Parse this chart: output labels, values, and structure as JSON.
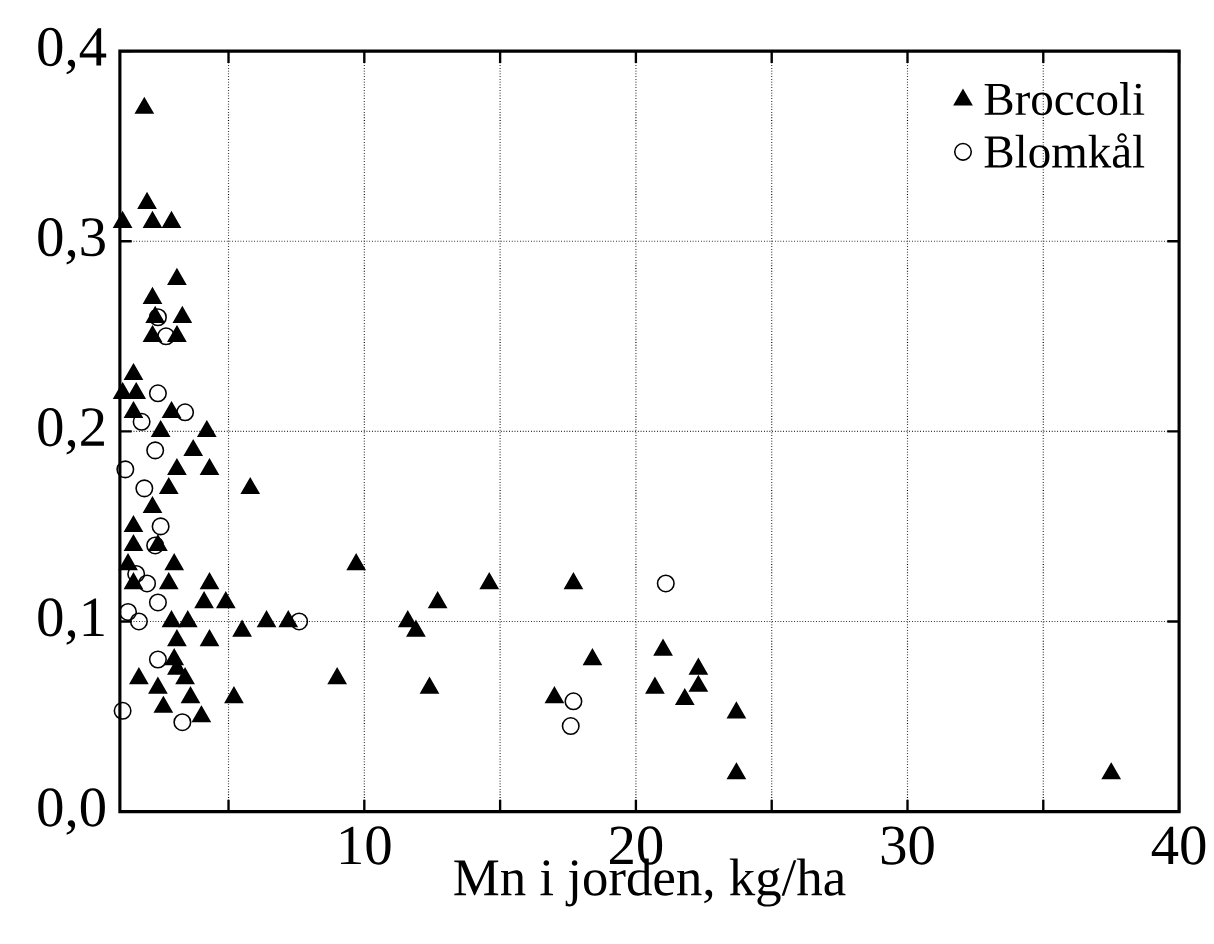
{
  "chart_data": {
    "type": "scatter",
    "xlabel": "Mn i jorden, kg/ha",
    "xlim": [
      1,
      40
    ],
    "ylim": [
      0,
      0.4
    ],
    "xticks": [
      {
        "value": 5,
        "label": null
      },
      10,
      {
        "value": 15,
        "label": null
      },
      20,
      {
        "value": 25,
        "label": null
      },
      30,
      {
        "value": 35,
        "label": null
      },
      40
    ],
    "yticks": [
      {
        "value": 0,
        "label": "0,0"
      },
      {
        "value": 0.1,
        "label": "0,1"
      },
      {
        "value": 0.2,
        "label": "0,2"
      },
      {
        "value": 0.3,
        "label": "0,3"
      },
      {
        "value": 0.4,
        "label": "0,4"
      }
    ],
    "grid": true,
    "legend": "top right",
    "series": [
      {
        "name": "Broccoli",
        "color": "#000000",
        "marker": "triangle",
        "x": [
          1.9,
          2.0,
          1.1,
          2.2,
          2.9,
          3.1,
          2.2,
          2.3,
          3.3,
          2.2,
          3.1,
          1.5,
          1.1,
          1.6,
          1.5,
          2.9,
          2.5,
          4.2,
          3.7,
          3.1,
          4.3,
          2.8,
          5.8,
          2.2,
          1.5,
          2.4,
          1.5,
          3.0,
          1.3,
          9.7,
          1.5,
          2.8,
          4.3,
          14.6,
          17.7,
          4.1,
          4.9,
          12.7,
          3.5,
          6.4,
          7.2,
          11.6,
          11.9,
          2.9,
          5.5,
          4.3,
          3.1,
          9.0,
          12.4,
          1.7,
          2.4,
          3.1,
          3.4,
          3.6,
          2.6,
          4.0,
          5.2,
          3.0,
          17.0,
          18.4,
          21.0,
          20.7,
          22.3,
          22.3,
          21.8,
          23.7,
          23.7,
          37.5
        ],
        "values": [
          0.37,
          0.32,
          0.31,
          0.31,
          0.31,
          0.28,
          0.27,
          0.26,
          0.26,
          0.25,
          0.25,
          0.23,
          0.22,
          0.22,
          0.21,
          0.21,
          0.2,
          0.2,
          0.19,
          0.18,
          0.18,
          0.17,
          0.17,
          0.16,
          0.15,
          0.14,
          0.14,
          0.13,
          0.13,
          0.13,
          0.12,
          0.12,
          0.12,
          0.12,
          0.12,
          0.11,
          0.11,
          0.11,
          0.1,
          0.1,
          0.1,
          0.1,
          0.095,
          0.1,
          0.095,
          0.09,
          0.09,
          0.07,
          0.065,
          0.07,
          0.065,
          0.075,
          0.07,
          0.06,
          0.055,
          0.05,
          0.06,
          0.08,
          0.06,
          0.08,
          0.085,
          0.065,
          0.075,
          0.066,
          0.059,
          0.052,
          0.02,
          0.02
        ]
      },
      {
        "name": "Blomkål",
        "color": "#000000",
        "marker": "circle",
        "x": [
          21.1,
          17.7,
          17.6,
          7.6,
          1.1,
          3.3,
          1.7,
          1.3,
          2.4,
          2.4,
          3.4,
          1.8,
          2.3,
          1.2,
          1.9,
          2.5,
          2.3,
          2.0,
          2.7,
          2.4,
          1.6,
          2.4
        ],
        "values": [
          0.12,
          0.058,
          0.045,
          0.1,
          0.053,
          0.047,
          0.1,
          0.105,
          0.11,
          0.22,
          0.21,
          0.205,
          0.19,
          0.18,
          0.17,
          0.15,
          0.14,
          0.12,
          0.25,
          0.26,
          0.125,
          0.08
        ]
      }
    ]
  }
}
